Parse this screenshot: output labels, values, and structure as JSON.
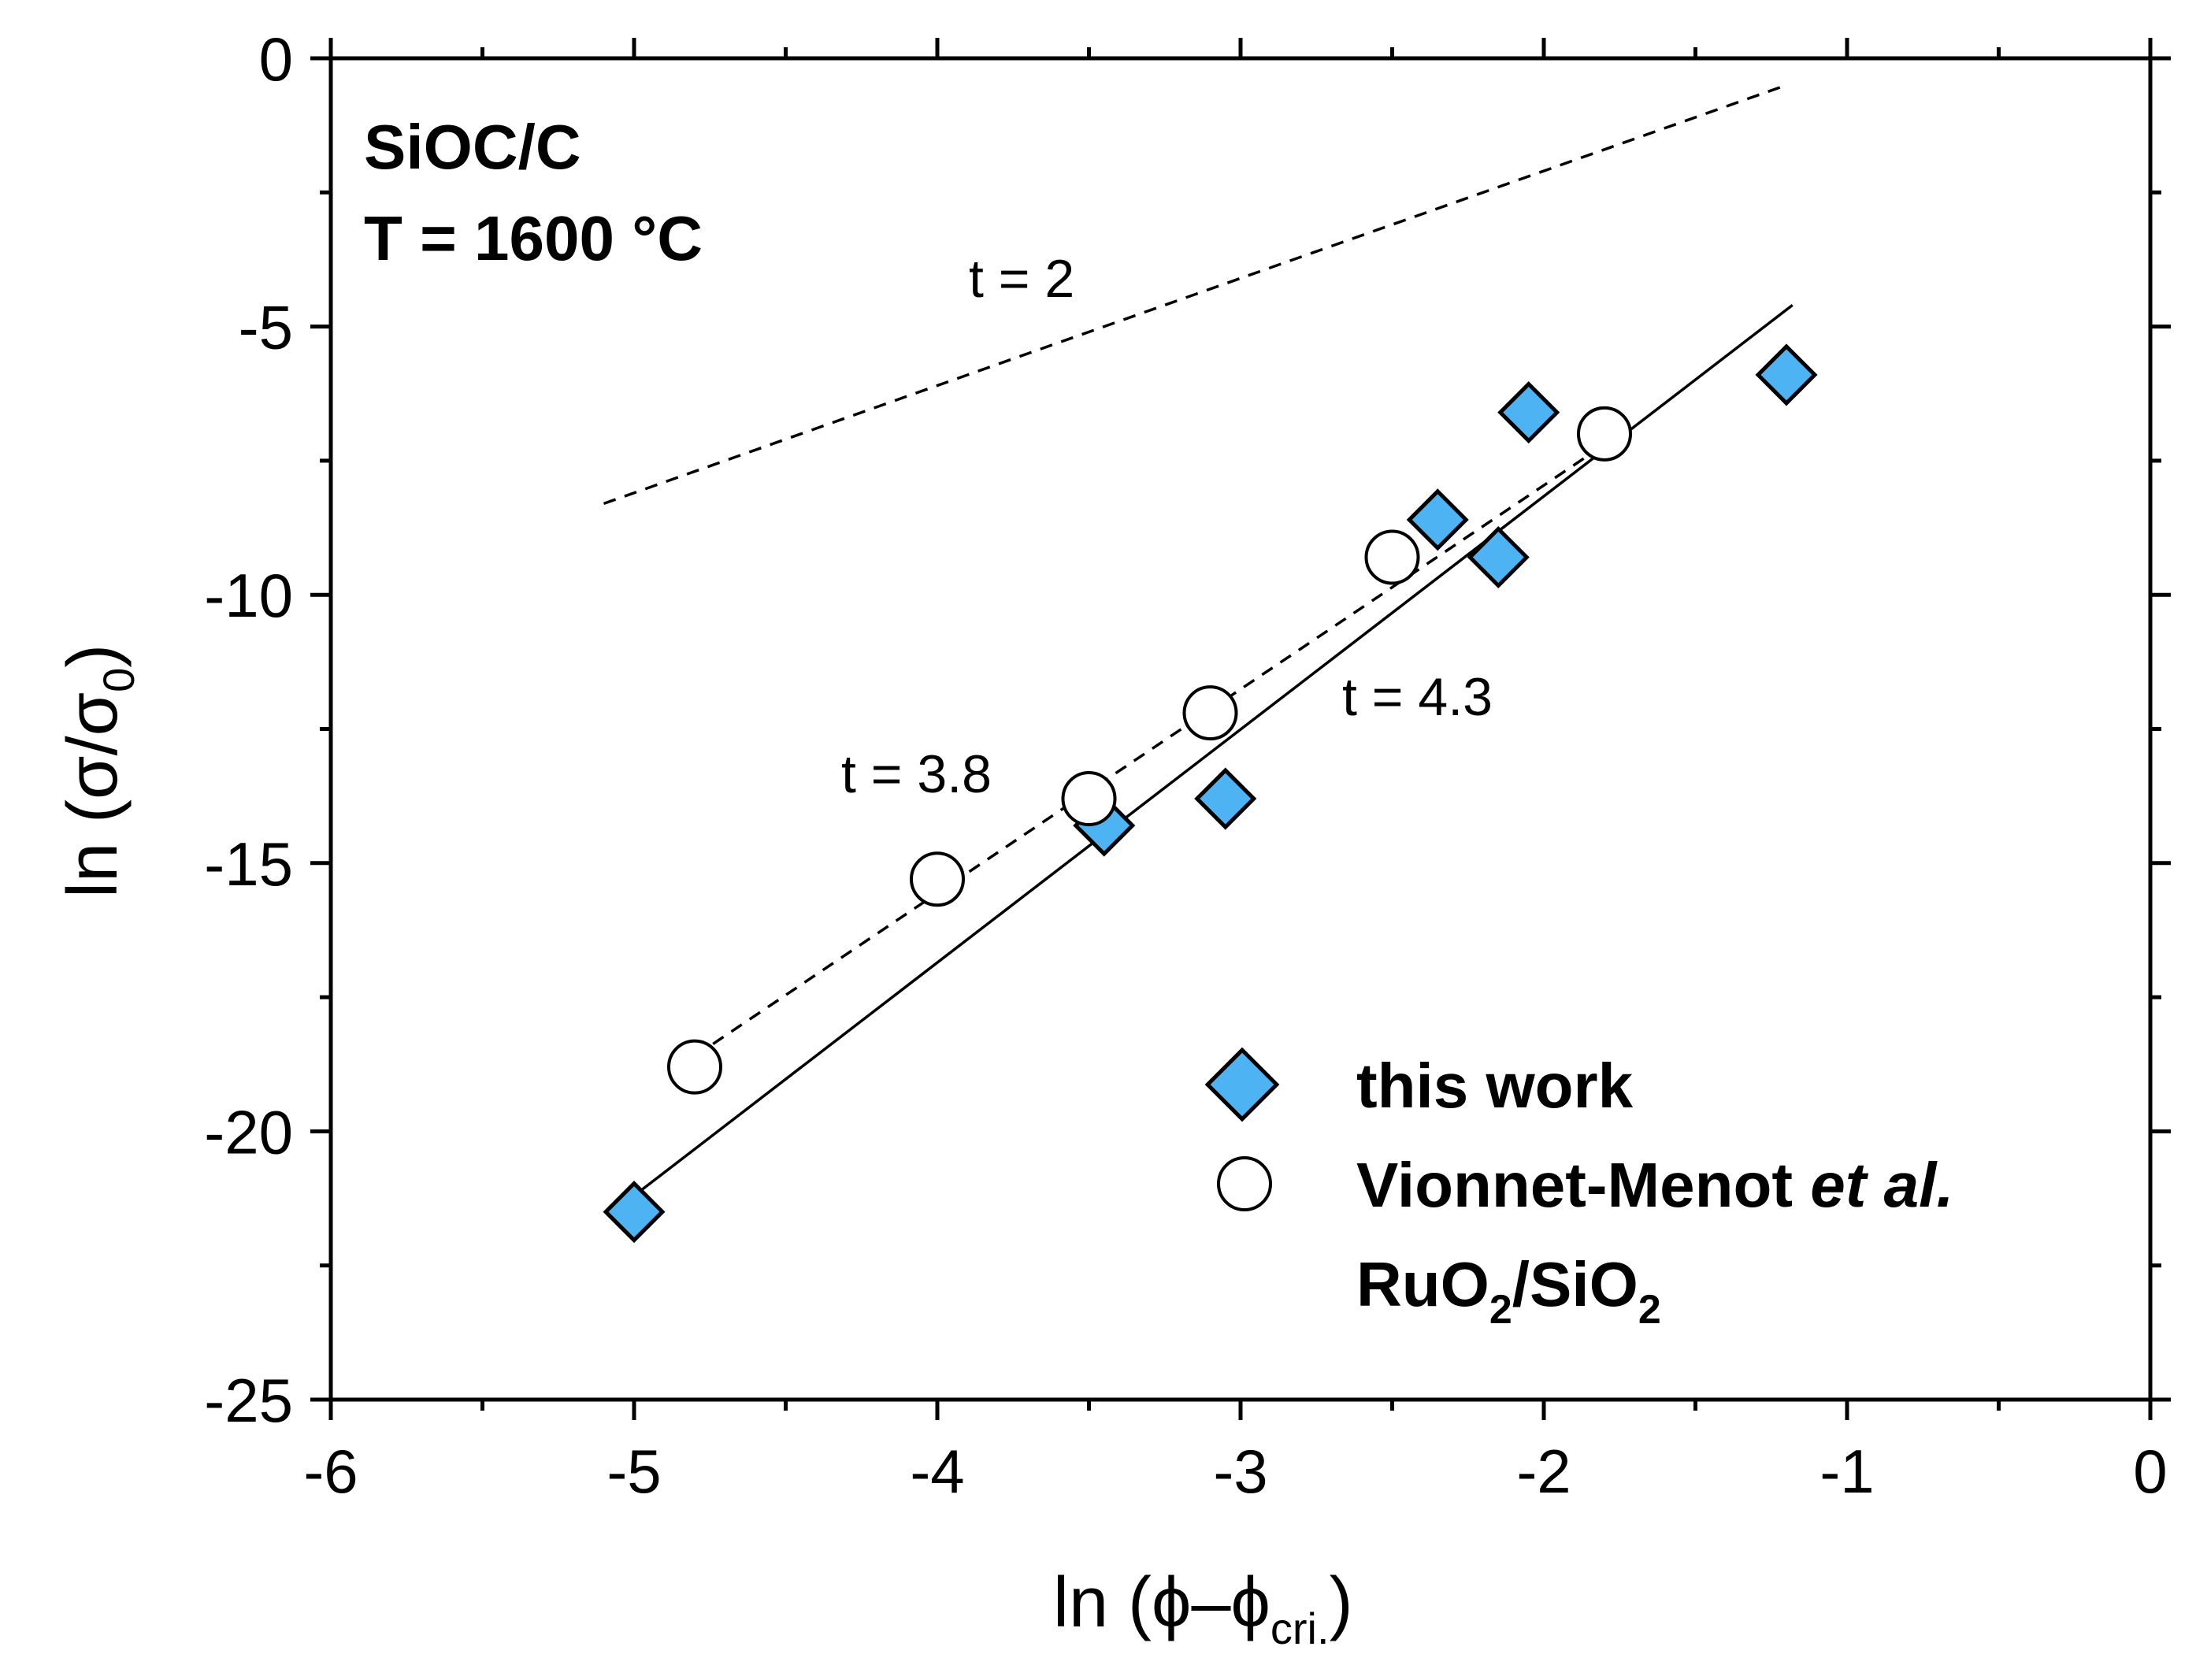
{
  "chart_data": {
    "type": "scatter",
    "xlabel": {
      "prefix": "ln (",
      "phi1": "ϕ",
      "dash": "–",
      "phi2": "ϕ",
      "sub": "cri.",
      "suffix": ")"
    },
    "ylabel": {
      "prefix": "ln (",
      "sigma1": "σ",
      "slash": "/",
      "sigma2": "σ",
      "sub": "0",
      "suffix": ")"
    },
    "xlim": [
      -6,
      0
    ],
    "ylim": [
      -25,
      0
    ],
    "xticks": [
      -6,
      -5,
      -4,
      -3,
      -2,
      -1,
      0
    ],
    "yticks": [
      0,
      -5,
      -10,
      -15,
      -20,
      -25
    ],
    "xtick_labels": [
      "-6",
      "-5",
      "-4",
      "-3",
      "-2",
      "-1",
      "0"
    ],
    "ytick_labels": [
      "0",
      "-5",
      "-10",
      "-15",
      "-20",
      "-25"
    ],
    "annotations": {
      "material": "SiOC/C",
      "temperature": "T = 1600 °C",
      "t2": "t = 2",
      "t38": "t = 3.8",
      "t43": "t = 4.3"
    },
    "series": [
      {
        "name": "this work",
        "marker": "diamond",
        "color": "#4db3f2",
        "points": [
          {
            "x": -5.0,
            "y": -21.5
          },
          {
            "x": -3.45,
            "y": -14.3
          },
          {
            "x": -3.05,
            "y": -13.8
          },
          {
            "x": -2.35,
            "y": -8.6
          },
          {
            "x": -2.15,
            "y": -9.3
          },
          {
            "x": -2.05,
            "y": -6.6
          },
          {
            "x": -1.2,
            "y": -5.9
          }
        ]
      },
      {
        "name": "Vionnet-Menot et al. RuO2/SiO2",
        "marker": "circle",
        "color": "#ffffff",
        "points": [
          {
            "x": -4.8,
            "y": -18.8
          },
          {
            "x": -4.0,
            "y": -15.3
          },
          {
            "x": -3.5,
            "y": -13.8
          },
          {
            "x": -3.1,
            "y": -12.2
          },
          {
            "x": -2.5,
            "y": -9.3
          },
          {
            "x": -1.8,
            "y": -7.0
          }
        ]
      }
    ],
    "fit_lines": [
      {
        "name": "t = 4.3",
        "style": "solid",
        "x": [
          -5.0,
          -1.18
        ],
        "y": [
          -21.2,
          -4.6
        ]
      },
      {
        "name": "t = 3.8",
        "style": "dashed",
        "x": [
          -4.8,
          -1.8
        ],
        "y": [
          -18.6,
          -7.2
        ]
      },
      {
        "name": "t = 2",
        "style": "dashed",
        "x": [
          -5.1,
          -1.2
        ],
        "y": [
          -8.3,
          -0.5
        ]
      }
    ],
    "legend": {
      "position": "lower-right",
      "entries": [
        {
          "label": "this work",
          "marker": "diamond"
        },
        {
          "label_main": "Vionnet-Menot ",
          "label_italic": "et al.",
          "label_line2_a": "RuO",
          "label_line2_sub1": "2",
          "label_line2_b": "/SiO",
          "label_line2_sub2": "2",
          "marker": "circle"
        }
      ]
    }
  }
}
